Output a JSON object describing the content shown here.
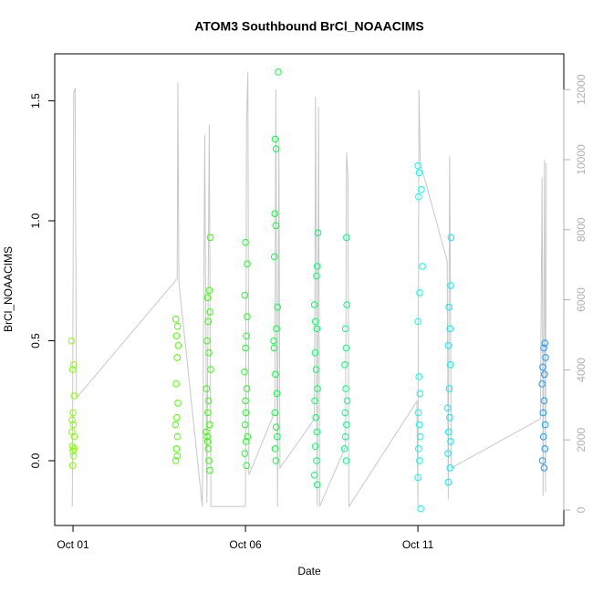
{
  "chart_data": {
    "type": "scatter",
    "title": "ATOM3 Southbound BrCl_NOAACIMS",
    "x_label": "Date",
    "y_label": "BrCl_NOAACIMS",
    "xlim": [
      0.47,
      15.23
    ],
    "xticks": [
      {
        "value": 1,
        "label": "Oct 01"
      },
      {
        "value": 6,
        "label": "Oct 06"
      },
      {
        "value": 11,
        "label": "Oct 11"
      }
    ],
    "ylim": [
      -0.27,
      1.696
    ],
    "yticks": [
      {
        "value": 0,
        "label": "0.0"
      },
      0.5,
      {
        "value": 1,
        "label": "1.0"
      },
      1.5
    ],
    "y2lim": [
      -443,
      13020
    ],
    "y2ticks": [
      0,
      2000,
      4000,
      6000,
      8000,
      10000,
      12000
    ],
    "y2color": "#b0b0b0",
    "series": [
      {
        "type": "line",
        "axis": "y2",
        "color": "#c8c8c8",
        "x": [
          0.98,
          1.02,
          1.06,
          1.1,
          4.02,
          4.04,
          4.07,
          4.75,
          4.82,
          4.88,
          4.95,
          5.0,
          6.0,
          6.03,
          6.07,
          6.1,
          6.85,
          6.88,
          6.93,
          6.97,
          7.0,
          8.0,
          8.03,
          8.08,
          8.12,
          8.15,
          8.9,
          8.93,
          8.97,
          9.0,
          10.97,
          11.0,
          11.03,
          11.07,
          11.85,
          11.88,
          11.92,
          11.97,
          14.55,
          14.6,
          14.63,
          14.67,
          14.7,
          14.72
        ],
        "values": [
          100,
          11900,
          12050,
          3200,
          6600,
          12200,
          6500,
          100,
          10700,
          200,
          11000,
          100,
          100,
          11000,
          12500,
          1000,
          2800,
          12000,
          100,
          10600,
          1200,
          2600,
          11800,
          100,
          11500,
          100,
          1800,
          10200,
          9500,
          100,
          3100,
          100,
          12000,
          9900,
          7100,
          300,
          10100,
          1200,
          2600,
          9500,
          400,
          10000,
          500,
          9900
        ]
      },
      {
        "color": "#80ff00",
        "x": [
          0.96,
          1.02,
          0.99,
          1.03,
          1.0,
          0.97,
          1.01,
          1.04,
          0.98,
          1.0,
          1.02,
          0.99,
          1.03,
          0.97
        ],
        "values": [
          0.5,
          0.4,
          0.38,
          0.27,
          0.2,
          0.17,
          0.15,
          0.1,
          0.06,
          0.04,
          0.02,
          -0.02,
          0.05,
          0.12
        ]
      },
      {
        "color": "#4dff00",
        "x": [
          3.98,
          4.03,
          4.0,
          4.05,
          4.02,
          3.99,
          4.04,
          4.01,
          3.97,
          4.03,
          4.0,
          4.02,
          3.98
        ],
        "values": [
          0.59,
          0.56,
          0.52,
          0.48,
          0.43,
          0.32,
          0.24,
          0.18,
          0.15,
          0.1,
          0.05,
          0.02,
          0.0
        ]
      },
      {
        "color": "#33ff00",
        "x": [
          4.98,
          4.95,
          4.9,
          4.97,
          4.92,
          4.88,
          4.94,
          4.99,
          4.87,
          4.93,
          4.91,
          4.96,
          4.89,
          4.92,
          4.94,
          4.97,
          4.86,
          4.9
        ],
        "values": [
          0.93,
          0.71,
          0.68,
          0.62,
          0.58,
          0.5,
          0.45,
          0.38,
          0.3,
          0.25,
          0.2,
          0.15,
          0.1,
          0.05,
          0.0,
          -0.04,
          0.12,
          0.08
        ]
      },
      {
        "color": "#1aff26",
        "x": [
          6.0,
          6.05,
          5.98,
          6.03,
          6.0,
          5.97,
          6.04,
          6.01,
          5.99,
          6.06,
          6.02,
          5.98,
          6.03,
          6.0,
          6.05
        ],
        "values": [
          0.91,
          0.82,
          0.69,
          0.52,
          0.47,
          0.37,
          0.3,
          0.2,
          0.15,
          0.1,
          0.08,
          0.03,
          -0.02,
          0.25,
          0.6
        ]
      },
      {
        "color": "#00ff40",
        "x": [
          6.95,
          6.86,
          6.89,
          6.85,
          6.88,
          6.84,
          6.93,
          6.9,
          6.83,
          6.87,
          6.91,
          6.85,
          6.89,
          6.92,
          6.86,
          6.88,
          6.82
        ],
        "values": [
          1.62,
          1.34,
          1.3,
          1.03,
          0.98,
          0.85,
          0.64,
          0.55,
          0.47,
          0.36,
          0.28,
          0.2,
          0.14,
          0.1,
          0.05,
          0.0,
          0.5
        ]
      },
      {
        "color": "#00ff66",
        "x": [
          8.1,
          8.08,
          8.06,
          8.0,
          8.03,
          8.07,
          8.02,
          8.05,
          8.09,
          8.01,
          8.04,
          8.07,
          8.03,
          8.06,
          8.0,
          8.08
        ],
        "values": [
          0.95,
          0.81,
          0.77,
          0.65,
          0.58,
          0.55,
          0.45,
          0.38,
          0.3,
          0.25,
          0.18,
          0.12,
          0.06,
          0.0,
          -0.06,
          -0.1
        ]
      },
      {
        "color": "#00ff80",
        "x": [
          8.93,
          8.94,
          8.9,
          8.92,
          8.88,
          8.91,
          8.95,
          8.89,
          8.93,
          8.9,
          8.87,
          8.92
        ],
        "values": [
          0.93,
          0.65,
          0.55,
          0.47,
          0.4,
          0.3,
          0.25,
          0.2,
          0.15,
          0.1,
          0.05,
          0.0
        ]
      },
      {
        "color": "#00ffee",
        "x": [
          11.0,
          11.04,
          11.1,
          11.02,
          11.13,
          11.05,
          11.0,
          11.03,
          11.06,
          11.01,
          11.04,
          11.07,
          11.02,
          11.05,
          11.0,
          11.08
        ],
        "values": [
          1.23,
          1.2,
          1.13,
          1.1,
          0.81,
          0.7,
          0.58,
          0.35,
          0.28,
          0.2,
          0.15,
          0.1,
          0.05,
          0.0,
          -0.07,
          -0.2
        ]
      },
      {
        "color": "#00eeff",
        "x": [
          11.96,
          11.95,
          11.9,
          11.93,
          11.88,
          11.94,
          11.91,
          11.86,
          11.92,
          11.89,
          11.95,
          11.87,
          11.93,
          11.88
        ],
        "values": [
          0.93,
          0.73,
          0.64,
          0.55,
          0.48,
          0.4,
          0.3,
          0.22,
          0.18,
          0.12,
          0.08,
          0.03,
          -0.03,
          -0.09
        ]
      },
      {
        "color": "#1a9cff",
        "x": [
          14.68,
          14.65,
          14.7,
          14.62,
          14.67,
          14.6,
          14.66,
          14.63,
          14.69,
          14.64,
          14.68,
          14.61,
          14.66
        ],
        "values": [
          0.49,
          0.47,
          0.43,
          0.39,
          0.36,
          0.32,
          0.25,
          0.2,
          0.15,
          0.1,
          0.05,
          0.0,
          -0.03
        ]
      }
    ]
  }
}
